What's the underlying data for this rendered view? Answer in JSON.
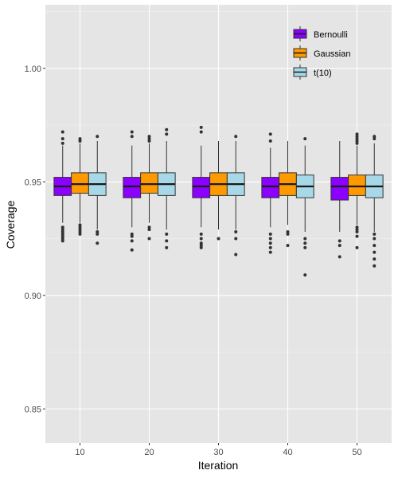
{
  "chart_data": {
    "type": "boxplot",
    "title": "",
    "xlabel": "Iteration",
    "ylabel": "Coverage",
    "categories": [
      "10",
      "20",
      "30",
      "40",
      "50"
    ],
    "ylim": [
      0.835,
      1.028
    ],
    "yticks": [
      0.85,
      0.9,
      0.95,
      1.0
    ],
    "ytick_labels": [
      "0.85",
      "0.90",
      "0.95",
      "1.00"
    ],
    "grid": true,
    "legend_position": "top-right",
    "panel_background": "#e5e5e5",
    "series": [
      {
        "name": "Bernoulli",
        "color": "#8b00ff",
        "boxes": [
          {
            "whisker_low": 0.932,
            "q1": 0.944,
            "median": 0.948,
            "q3": 0.952,
            "whisker_high": 0.966,
            "outliers": [
              0.972,
              0.969,
              0.967,
              0.93,
              0.929,
              0.928,
              0.927,
              0.926,
              0.925,
              0.924
            ]
          },
          {
            "whisker_low": 0.93,
            "q1": 0.943,
            "median": 0.948,
            "q3": 0.952,
            "whisker_high": 0.966,
            "outliers": [
              0.972,
              0.97,
              0.927,
              0.926,
              0.924,
              0.92
            ]
          },
          {
            "whisker_low": 0.93,
            "q1": 0.943,
            "median": 0.948,
            "q3": 0.952,
            "whisker_high": 0.966,
            "outliers": [
              0.974,
              0.972,
              0.927,
              0.925,
              0.923,
              0.922,
              0.921
            ]
          },
          {
            "whisker_low": 0.93,
            "q1": 0.943,
            "median": 0.948,
            "q3": 0.952,
            "whisker_high": 0.965,
            "outliers": [
              0.971,
              0.968,
              0.927,
              0.925,
              0.923,
              0.921,
              0.919
            ]
          },
          {
            "whisker_low": 0.928,
            "q1": 0.942,
            "median": 0.948,
            "q3": 0.952,
            "whisker_high": 0.968,
            "outliers": [
              0.924,
              0.922,
              0.917
            ]
          }
        ]
      },
      {
        "name": "Gaussian",
        "color": "#ff9900",
        "boxes": [
          {
            "whisker_low": 0.932,
            "q1": 0.945,
            "median": 0.949,
            "q3": 0.954,
            "whisker_high": 0.967,
            "outliers": [
              0.969,
              0.968,
              0.931,
              0.93,
              0.929,
              0.928,
              0.927
            ]
          },
          {
            "whisker_low": 0.932,
            "q1": 0.945,
            "median": 0.949,
            "q3": 0.954,
            "whisker_high": 0.967,
            "outliers": [
              0.97,
              0.969,
              0.968,
              0.93,
              0.929,
              0.925
            ]
          },
          {
            "whisker_low": 0.929,
            "q1": 0.944,
            "median": 0.949,
            "q3": 0.954,
            "whisker_high": 0.968,
            "outliers": [
              0.925
            ]
          },
          {
            "whisker_low": 0.931,
            "q1": 0.944,
            "median": 0.949,
            "q3": 0.954,
            "whisker_high": 0.968,
            "outliers": [
              0.928,
              0.927,
              0.922
            ]
          },
          {
            "whisker_low": 0.931,
            "q1": 0.944,
            "median": 0.948,
            "q3": 0.953,
            "whisker_high": 0.966,
            "outliers": [
              0.971,
              0.97,
              0.969,
              0.968,
              0.967,
              0.93,
              0.929,
              0.928,
              0.926,
              0.921
            ]
          }
        ]
      },
      {
        "name": "t(10)",
        "color": "#a6d8e8",
        "boxes": [
          {
            "whisker_low": 0.929,
            "q1": 0.944,
            "median": 0.949,
            "q3": 0.954,
            "whisker_high": 0.968,
            "outliers": [
              0.97,
              0.928,
              0.927,
              0.923
            ]
          },
          {
            "whisker_low": 0.929,
            "q1": 0.944,
            "median": 0.949,
            "q3": 0.954,
            "whisker_high": 0.968,
            "outliers": [
              0.973,
              0.971,
              0.927,
              0.924,
              0.921
            ]
          },
          {
            "whisker_low": 0.929,
            "q1": 0.944,
            "median": 0.949,
            "q3": 0.954,
            "whisker_high": 0.968,
            "outliers": [
              0.97,
              0.928,
              0.925,
              0.918
            ]
          },
          {
            "whisker_low": 0.928,
            "q1": 0.943,
            "median": 0.948,
            "q3": 0.953,
            "whisker_high": 0.966,
            "outliers": [
              0.969,
              0.925,
              0.923,
              0.921,
              0.909
            ]
          },
          {
            "whisker_low": 0.928,
            "q1": 0.943,
            "median": 0.948,
            "q3": 0.953,
            "whisker_high": 0.967,
            "outliers": [
              0.97,
              0.969,
              0.927,
              0.925,
              0.922,
              0.919,
              0.916,
              0.913
            ]
          }
        ]
      }
    ]
  }
}
